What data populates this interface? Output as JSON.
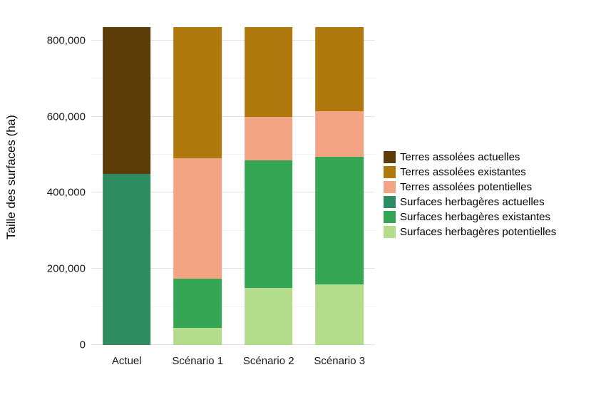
{
  "figure": {
    "background": "#FFFFFF"
  },
  "chart_data": {
    "type": "bar",
    "stacked": true,
    "title": "",
    "xlabel": "",
    "ylabel": "Taille des surfaces (ha)",
    "categories": [
      "Actuel",
      "Scénario 1",
      "Scénario 2",
      "Scénario 3"
    ],
    "series": [
      {
        "name": "Terres assolées actuelles",
        "color": "#5C3D0A",
        "values": [
          385000,
          0,
          0,
          0
        ]
      },
      {
        "name": "Terres assolées existantes",
        "color": "#B0790D",
        "values": [
          0,
          345000,
          235000,
          220000
        ]
      },
      {
        "name": "Terres assolées potentielles",
        "color": "#F3A583",
        "values": [
          0,
          315000,
          115000,
          120000
        ]
      },
      {
        "name": "Surfaces herbagères actuelles",
        "color": "#2E8B62",
        "values": [
          450000,
          0,
          0,
          0
        ]
      },
      {
        "name": "Surfaces herbagères existantes",
        "color": "#35A653",
        "values": [
          0,
          130000,
          335000,
          335000
        ]
      },
      {
        "name": "Surfaces herbagères potentielles",
        "color": "#B3DD8C",
        "values": [
          0,
          45000,
          150000,
          160000
        ]
      }
    ],
    "totals": [
      835000,
      835000,
      835000,
      835000
    ],
    "ylim": [
      0,
      880000
    ],
    "yticks": [
      0,
      200000,
      400000,
      600000,
      800000
    ],
    "yticks_minor": [
      100000,
      300000,
      500000,
      700000
    ],
    "grid": true,
    "legend_position": "right"
  }
}
